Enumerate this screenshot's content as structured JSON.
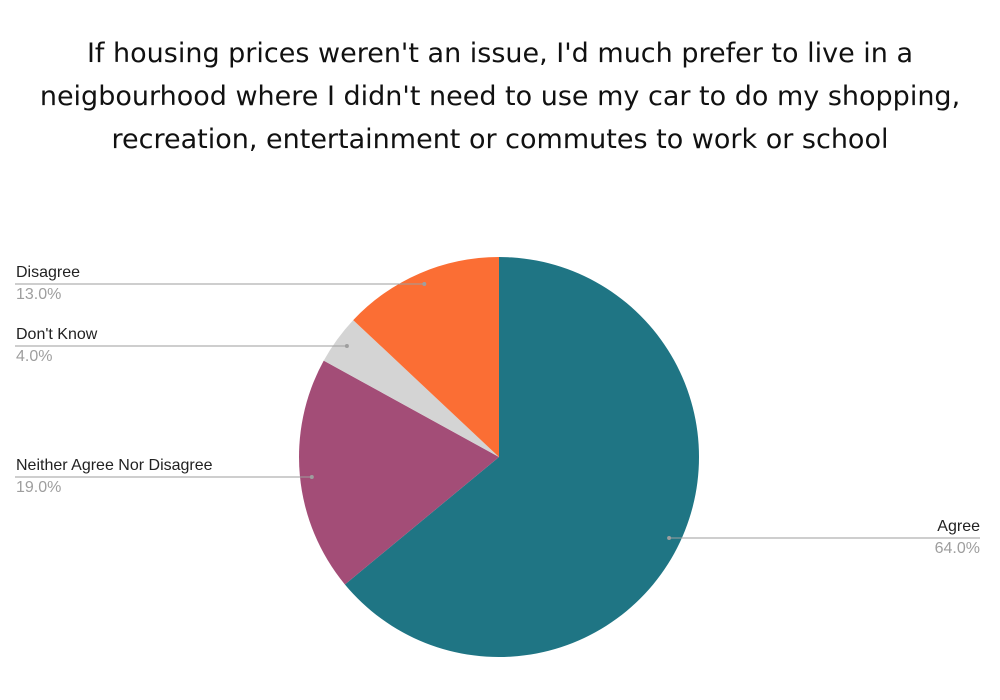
{
  "chart_data": {
    "type": "pie",
    "title": "If housing prices weren't an issue, I'd much prefer to live in a neigbourhood where I didn't need to use my car to do my shopping, recreation, entertainment or commutes to work or school",
    "slices": [
      {
        "label": "Agree",
        "value": 64.0,
        "value_label": "64.0%",
        "color": "#1f7584",
        "side": "right"
      },
      {
        "label": "Neither Agree Nor Disagree",
        "value": 19.0,
        "value_label": "19.0%",
        "color": "#a34d77",
        "side": "left"
      },
      {
        "label": "Don't Know",
        "value": 4.0,
        "value_label": "4.0%",
        "color": "#d4d4d4",
        "side": "left"
      },
      {
        "label": "Disagree",
        "value": 13.0,
        "value_label": "13.0%",
        "color": "#fb6e34",
        "side": "left"
      }
    ],
    "start_angle": "12 o'clock",
    "direction": "clockwise",
    "legend": "none",
    "leader_line_color": "#9e9e9e"
  }
}
